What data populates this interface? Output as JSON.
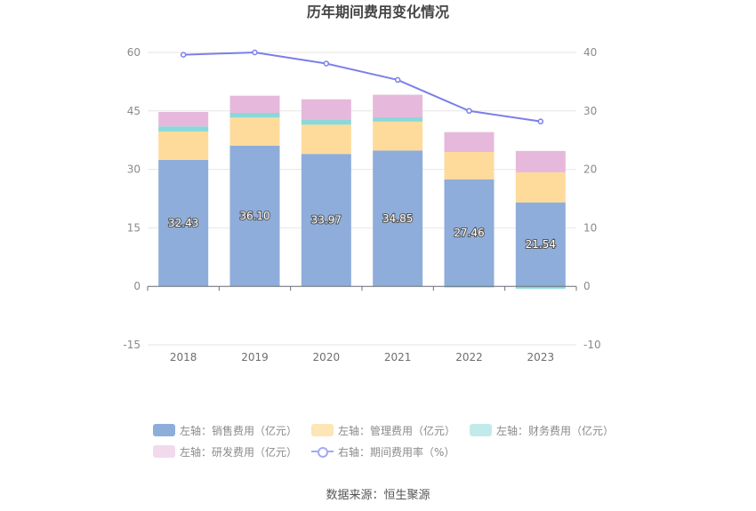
{
  "chart_data": {
    "type": "bar",
    "title": "历年期间费用变化情况",
    "categories": [
      "2018",
      "2019",
      "2020",
      "2021",
      "2022",
      "2023"
    ],
    "stacked": true,
    "left_axis": {
      "min": -15,
      "max": 60,
      "ticks": [
        -15,
        0,
        15,
        30,
        45,
        60
      ]
    },
    "right_axis": {
      "min": -10,
      "max": 40,
      "ticks": [
        -10,
        0,
        10,
        20,
        30,
        40
      ]
    },
    "series": [
      {
        "name": "左轴：销售费用（亿元）",
        "type": "bar",
        "axis": "left",
        "color": "#8eadda",
        "values": [
          32.43,
          36.1,
          33.97,
          34.85,
          27.46,
          21.54
        ],
        "labels": [
          "32.43",
          "36.10",
          "33.97",
          "34.85",
          "27.46",
          "21.54"
        ]
      },
      {
        "name": "左轴：管理费用（亿元）",
        "type": "bar",
        "axis": "left",
        "color": "#fedb9b",
        "values": [
          7.3,
          7.2,
          7.5,
          7.4,
          7.0,
          7.7
        ]
      },
      {
        "name": "左轴：财务费用（亿元）",
        "type": "bar",
        "axis": "left",
        "color": "#8ad8d8",
        "values": [
          1.3,
          1.2,
          1.4,
          1.1,
          -0.3,
          -0.6
        ]
      },
      {
        "name": "左轴：研发费用（亿元）",
        "type": "bar",
        "axis": "left",
        "color": "#e6b9dc",
        "values": [
          3.7,
          4.4,
          5.1,
          5.8,
          5.1,
          5.5
        ]
      },
      {
        "name": "右轴：期间费用率（%）",
        "type": "line",
        "axis": "right",
        "color": "#7b80e8",
        "values": [
          39.6,
          40.0,
          38.1,
          35.3,
          30.0,
          28.2
        ]
      }
    ],
    "legend_placement": "bottom",
    "grid": true
  },
  "legend": {
    "items": [
      {
        "label": "左轴：销售费用（亿元）",
        "color": "#8eadda"
      },
      {
        "label": "左轴：管理费用（亿元）",
        "color": "#fee5b5"
      },
      {
        "label": "左轴：财务费用（亿元）",
        "color": "#c1ebeb"
      },
      {
        "label": "左轴：研发费用（亿元）",
        "color": "#f3d9ec"
      },
      {
        "label": "右轴：期间费用率（%）",
        "color": "#a3a9f5"
      }
    ]
  },
  "source": "数据来源：恒生聚源"
}
